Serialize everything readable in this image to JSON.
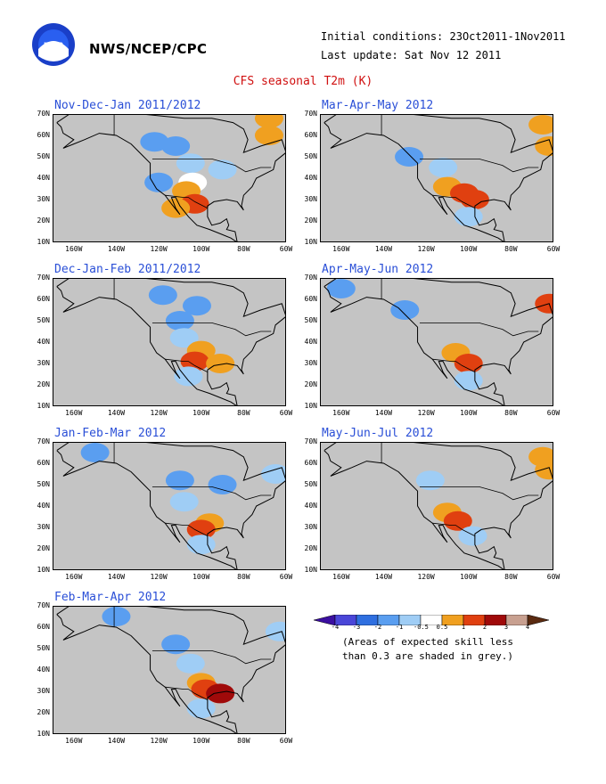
{
  "header": {
    "agency": "NWS/NCEP/CPC",
    "initial_conditions": "Initial conditions: 23Oct2011-1Nov2011",
    "last_update": "Last update: Sat Nov 12 2011",
    "title": "CFS seasonal T2m (K)"
  },
  "axes": {
    "lat_labels": [
      "70N",
      "60N",
      "50N",
      "40N",
      "30N",
      "20N",
      "10N"
    ],
    "lon_labels": [
      "160W",
      "140W",
      "120W",
      "100W",
      "80W",
      "60W"
    ]
  },
  "panels": [
    {
      "title": "Nov-Dec-Jan 2011/2012",
      "anomalies": [
        {
          "lat": 57,
          "lon": -122,
          "level": "-1"
        },
        {
          "lat": 55,
          "lon": -112,
          "level": "-1"
        },
        {
          "lat": 47,
          "lon": -105,
          "level": "-0.5"
        },
        {
          "lat": 44,
          "lon": -90,
          "level": "-0.5"
        },
        {
          "lat": 38,
          "lon": -120,
          "level": "-1"
        },
        {
          "lat": 38,
          "lon": -104,
          "level": "0.5"
        },
        {
          "lat": 34,
          "lon": -107,
          "level": "1"
        },
        {
          "lat": 28,
          "lon": -103,
          "level": "2"
        },
        {
          "lat": 26,
          "lon": -112,
          "level": "1"
        },
        {
          "lat": 68,
          "lon": -68,
          "level": "1"
        },
        {
          "lat": 60,
          "lon": -68,
          "level": "1"
        }
      ]
    },
    {
      "title": "Mar-Apr-May 2012",
      "anomalies": [
        {
          "lat": 50,
          "lon": -128,
          "level": "-1"
        },
        {
          "lat": 45,
          "lon": -112,
          "level": "-0.5"
        },
        {
          "lat": 36,
          "lon": -110,
          "level": "1"
        },
        {
          "lat": 33,
          "lon": -102,
          "level": "2"
        },
        {
          "lat": 30,
          "lon": -97,
          "level": "2"
        },
        {
          "lat": 22,
          "lon": -100,
          "level": "-0.5"
        },
        {
          "lat": 65,
          "lon": -65,
          "level": "1"
        },
        {
          "lat": 55,
          "lon": -62,
          "level": "1"
        }
      ]
    },
    {
      "title": "Dec-Jan-Feb 2011/2012",
      "anomalies": [
        {
          "lat": 62,
          "lon": -118,
          "level": "-1"
        },
        {
          "lat": 57,
          "lon": -102,
          "level": "-1"
        },
        {
          "lat": 50,
          "lon": -110,
          "level": "-1"
        },
        {
          "lat": 42,
          "lon": -108,
          "level": "-0.5"
        },
        {
          "lat": 36,
          "lon": -100,
          "level": "1"
        },
        {
          "lat": 31,
          "lon": -103,
          "level": "2"
        },
        {
          "lat": 30,
          "lon": -91,
          "level": "1"
        },
        {
          "lat": 24,
          "lon": -106,
          "level": "-0.5"
        }
      ]
    },
    {
      "title": "Apr-May-Jun 2012",
      "anomalies": [
        {
          "lat": 55,
          "lon": -130,
          "level": "-1"
        },
        {
          "lat": 35,
          "lon": -106,
          "level": "1"
        },
        {
          "lat": 30,
          "lon": -100,
          "level": "2"
        },
        {
          "lat": 22,
          "lon": -100,
          "level": "-0.5"
        },
        {
          "lat": 58,
          "lon": -62,
          "level": "2"
        },
        {
          "lat": 65,
          "lon": -160,
          "level": "-1"
        }
      ]
    },
    {
      "title": "Jan-Feb-Mar 2012",
      "anomalies": [
        {
          "lat": 65,
          "lon": -150,
          "level": "-1"
        },
        {
          "lat": 52,
          "lon": -110,
          "level": "-1"
        },
        {
          "lat": 50,
          "lon": -90,
          "level": "-1"
        },
        {
          "lat": 42,
          "lon": -108,
          "level": "-0.5"
        },
        {
          "lat": 32,
          "lon": -96,
          "level": "1"
        },
        {
          "lat": 29,
          "lon": -100,
          "level": "2"
        },
        {
          "lat": 22,
          "lon": -100,
          "level": "-0.5"
        },
        {
          "lat": 55,
          "lon": -65,
          "level": "-0.5"
        }
      ]
    },
    {
      "title": "May-Jun-Jul 2012",
      "anomalies": [
        {
          "lat": 52,
          "lon": -118,
          "level": "-0.5"
        },
        {
          "lat": 37,
          "lon": -110,
          "level": "1"
        },
        {
          "lat": 33,
          "lon": -105,
          "level": "2"
        },
        {
          "lat": 26,
          "lon": -98,
          "level": "-0.5"
        },
        {
          "lat": 57,
          "lon": -62,
          "level": "1"
        },
        {
          "lat": 63,
          "lon": -65,
          "level": "1"
        }
      ]
    },
    {
      "title": "Feb-Mar-Apr 2012",
      "anomalies": [
        {
          "lat": 65,
          "lon": -140,
          "level": "-1"
        },
        {
          "lat": 52,
          "lon": -112,
          "level": "-1"
        },
        {
          "lat": 43,
          "lon": -105,
          "level": "-0.5"
        },
        {
          "lat": 34,
          "lon": -100,
          "level": "1"
        },
        {
          "lat": 31,
          "lon": -98,
          "level": "2"
        },
        {
          "lat": 29,
          "lon": -91,
          "level": "3"
        },
        {
          "lat": 22,
          "lon": -100,
          "level": "-0.5"
        },
        {
          "lat": 58,
          "lon": -63,
          "level": "-0.5"
        }
      ]
    }
  ],
  "colorbar": {
    "labels": [
      "-4",
      "-3",
      "-2",
      "-1",
      "-0.5",
      "0.5",
      "1",
      "2",
      "3",
      "4"
    ],
    "colors": [
      "#3b0fa0",
      "#4a46d8",
      "#2f6fe0",
      "#5a9ef0",
      "#9fcdf5",
      "#ffffff",
      "#f0a020",
      "#e04010",
      "#a00a0a",
      "#c8a090",
      "#5a2a10"
    ],
    "note_line1": "(Areas of expected skill less",
    "note_line2": "than 0.3 are shaded in grey.)"
  },
  "colors": {
    "grey": "#c4c4c4",
    "land_line": "#000000",
    "panel_title": "#2a4fd7",
    "title": "#d01010"
  }
}
